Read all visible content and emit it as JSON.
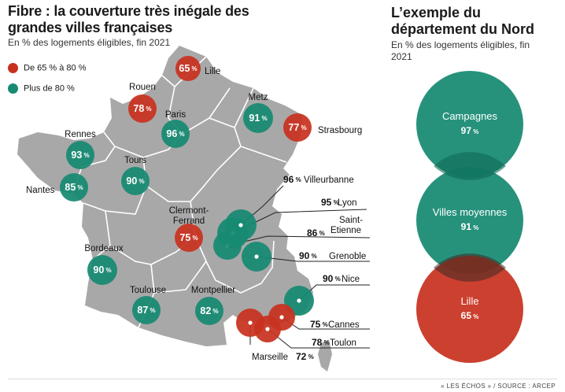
{
  "title": "Fibre : la couverture très inégale des grandes villes françaises",
  "subtitle": "En % des logements éligibles, fin 2021",
  "legend": [
    {
      "label": "De 65 % à 80 %",
      "color": "#c8311f"
    },
    {
      "label": "Plus de 80 %",
      "color": "#178a72"
    }
  ],
  "colors": {
    "red": "#c8311f",
    "green": "#178a72",
    "map": "#a8a8a8",
    "border": "#ffffff"
  },
  "cities": [
    {
      "name": "Lille",
      "value": "65",
      "cat": "red"
    },
    {
      "name": "Rouen",
      "value": "78",
      "cat": "red"
    },
    {
      "name": "Paris",
      "value": "96",
      "cat": "green"
    },
    {
      "name": "Metz",
      "value": "91",
      "cat": "green"
    },
    {
      "name": "Strasbourg",
      "value": "77",
      "cat": "red"
    },
    {
      "name": "Rennes",
      "value": "93",
      "cat": "green"
    },
    {
      "name": "Nantes",
      "value": "85",
      "cat": "green"
    },
    {
      "name": "Tours",
      "value": "90",
      "cat": "green"
    },
    {
      "name": "Villeurbanne",
      "value": "96",
      "cat": "green"
    },
    {
      "name": "Lyon",
      "value": "95",
      "cat": "green"
    },
    {
      "name": "Saint-Etienne",
      "value": "86",
      "cat": "green"
    },
    {
      "name": "Clermont-Ferrand",
      "value": "75",
      "cat": "red"
    },
    {
      "name": "Grenoble",
      "value": "90",
      "cat": "green"
    },
    {
      "name": "Bordeaux",
      "value": "90",
      "cat": "green"
    },
    {
      "name": "Toulouse",
      "value": "87",
      "cat": "green"
    },
    {
      "name": "Montpellier",
      "value": "82",
      "cat": "green"
    },
    {
      "name": "Nice",
      "value": "90",
      "cat": "green"
    },
    {
      "name": "Cannes",
      "value": "75",
      "cat": "red"
    },
    {
      "name": "Toulon",
      "value": "78",
      "cat": "red"
    },
    {
      "name": "Marseille",
      "value": "72",
      "cat": "red"
    }
  ],
  "nord": {
    "title": "L’exemple du département du Nord",
    "subtitle": "En % des logements éligibles, fin 2021",
    "items": [
      {
        "name": "Campagnes",
        "value": "97",
        "cat": "green"
      },
      {
        "name": "Villes moyennes",
        "value": "91",
        "cat": "green"
      },
      {
        "name": "Lille",
        "value": "65",
        "cat": "red"
      }
    ]
  },
  "footer": "« LES ÉCHOS » / SOURCE : ARCEP"
}
